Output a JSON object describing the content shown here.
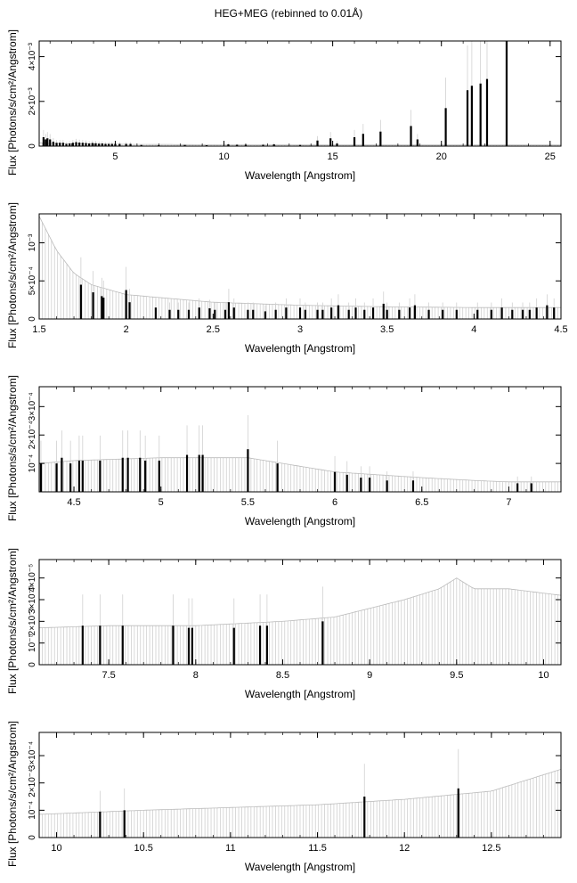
{
  "title": "HEG+MEG (rebinned to 0.01Å)",
  "chart_data": [
    {
      "type": "line",
      "xlabel": "Wavelength [Angstrom]",
      "ylabel": "Flux [Photons/s/cm²/Angstrom]",
      "xlim": [
        1.5,
        25.5
      ],
      "ylim": [
        0,
        0.0047
      ],
      "xticks": [
        5,
        10,
        15,
        20,
        25
      ],
      "xtick_labels": [
        "5",
        "10",
        "15",
        "20",
        "25"
      ],
      "yticks": [
        0,
        0.002,
        0.004
      ],
      "ytick_labels": [
        "0",
        "2×10⁻³",
        "4×10⁻³"
      ],
      "lines": {
        "x": [
          1.7,
          1.8,
          1.88,
          2.0,
          2.15,
          2.3,
          2.45,
          2.6,
          2.75,
          2.9,
          3.05,
          3.2,
          3.35,
          3.5,
          3.65,
          3.8,
          3.95,
          4.1,
          4.25,
          4.4,
          4.55,
          4.7,
          4.85,
          5.0,
          5.2,
          5.5,
          5.7,
          6.2,
          7.0,
          8.2,
          9.2,
          10.2,
          10.6,
          11.0,
          11.8,
          12.3,
          13.5,
          14.3,
          14.9,
          15.2,
          16.0,
          16.4,
          17.2,
          18.6,
          18.9,
          20.2,
          21.2,
          21.4,
          21.8,
          22.1,
          23.0
        ],
        "y": [
          0.0004,
          0.0003,
          0.00035,
          0.0003,
          0.0002,
          0.00015,
          0.00015,
          0.00015,
          0.0001,
          0.00012,
          0.00015,
          0.00018,
          0.00016,
          0.00015,
          0.00014,
          0.00012,
          0.00014,
          0.00013,
          0.00011,
          0.00012,
          0.0001,
          0.0001,
          0.0001,
          0.0001,
          0.0001,
          0.0001,
          0.0001,
          5e-05,
          4e-05,
          5e-05,
          4e-05,
          8e-05,
          6e-05,
          6e-05,
          6e-05,
          8e-05,
          5e-05,
          0.00025,
          0.00035,
          0.00012,
          0.0004,
          0.00055,
          0.00065,
          0.0009,
          0.0003,
          0.0017,
          0.0025,
          0.0027,
          0.0028,
          0.003,
          0.0047
        ]
      },
      "band": {
        "x": [
          1.5,
          2.0,
          3.0,
          5.0,
          10.0,
          15.0,
          20.0,
          25.5
        ],
        "y": [
          0.00015,
          0.00012,
          0.0001,
          8e-05,
          6e-05,
          5e-05,
          5e-05,
          5e-05
        ]
      }
    },
    {
      "type": "line",
      "xlabel": "Wavelength [Angstrom]",
      "ylabel": "Flux [Photons/s/cm²/Angstrom]",
      "xlim": [
        1.5,
        4.5
      ],
      "ylim": [
        0,
        0.00138
      ],
      "xticks": [
        1.5,
        2,
        2.5,
        3,
        3.5,
        4,
        4.5
      ],
      "xtick_labels": [
        "1.5",
        "2",
        "2.5",
        "3",
        "3.5",
        "4",
        "4.5"
      ],
      "yticks": [
        0,
        0.0005,
        0.001
      ],
      "ytick_labels": [
        "0",
        "5×10⁻⁴",
        "10⁻³"
      ],
      "lines": {
        "x": [
          1.74,
          1.81,
          1.86,
          1.87,
          2.0,
          2.02,
          2.17,
          2.25,
          2.3,
          2.36,
          2.42,
          2.48,
          2.51,
          2.57,
          2.59,
          2.62,
          2.7,
          2.73,
          2.8,
          2.86,
          2.92,
          3.0,
          3.03,
          3.1,
          3.13,
          3.18,
          3.22,
          3.28,
          3.32,
          3.37,
          3.42,
          3.48,
          3.5,
          3.57,
          3.63,
          3.66,
          3.74,
          3.82,
          3.9,
          4.02,
          4.1,
          4.16,
          4.22,
          4.28,
          4.32,
          4.36,
          4.42,
          4.46
        ],
        "y": [
          0.00045,
          0.00035,
          0.0003,
          0.00028,
          0.00038,
          0.00022,
          0.00015,
          0.00012,
          0.00012,
          0.00012,
          0.00015,
          0.00014,
          0.00012,
          0.00012,
          0.00022,
          0.00015,
          0.00012,
          0.00012,
          0.0001,
          0.00012,
          0.00015,
          0.00015,
          0.00012,
          0.00012,
          0.00012,
          0.00015,
          0.00018,
          0.00012,
          0.00015,
          0.00012,
          0.00015,
          0.0002,
          0.00012,
          0.00012,
          0.00015,
          0.00018,
          0.00012,
          0.00012,
          0.00012,
          0.00012,
          0.00012,
          0.00015,
          0.00012,
          0.00012,
          0.00012,
          0.00015,
          0.00018,
          0.00015
        ]
      },
      "band": {
        "x": [
          1.5,
          1.6,
          1.7,
          1.8,
          2.0,
          2.5,
          3.0,
          3.5,
          4.0,
          4.5
        ],
        "y": [
          0.00135,
          0.0009,
          0.0006,
          0.00045,
          0.00032,
          0.00022,
          0.00018,
          0.00016,
          0.00015,
          0.00015
        ]
      }
    },
    {
      "type": "line",
      "xlabel": "Wavelength [Angstrom]",
      "ylabel": "Flux [Photons/s/cm²/Angstrom]",
      "xlim": [
        4.3,
        7.3
      ],
      "ylim": [
        0,
        0.00037
      ],
      "xticks": [
        4.5,
        5,
        5.5,
        6,
        6.5,
        7
      ],
      "xtick_labels": [
        "4.5",
        "5",
        "5.5",
        "6",
        "6.5",
        "7"
      ],
      "yticks": [
        0.0001,
        0.0002,
        0.0003
      ],
      "ytick_labels": [
        "10⁻⁴",
        "2×10⁻⁴",
        "3×10⁻⁴"
      ],
      "lines": {
        "x": [
          4.31,
          4.4,
          4.43,
          4.48,
          4.53,
          4.55,
          4.65,
          4.78,
          4.81,
          4.88,
          4.91,
          4.99,
          5.15,
          5.22,
          5.24,
          5.5,
          5.67,
          6.0,
          6.07,
          6.15,
          6.2,
          6.3,
          6.45,
          7.05,
          7.13
        ],
        "y": [
          0.0001,
          0.0001,
          0.00012,
          0.0001,
          0.00011,
          0.00011,
          0.00011,
          0.00012,
          0.00012,
          0.00012,
          0.00011,
          0.00011,
          0.00013,
          0.00013,
          0.00013,
          0.00015,
          0.0001,
          7e-05,
          6e-05,
          5e-05,
          5e-05,
          4e-05,
          4e-05,
          3e-05,
          3e-05
        ]
      },
      "band": {
        "x": [
          4.3,
          4.5,
          5.0,
          5.5,
          5.8,
          6.0,
          6.5,
          6.8,
          7.0,
          7.3
        ],
        "y": [
          0.0001,
          0.00011,
          0.00012,
          0.00012,
          9e-05,
          7e-05,
          5e-05,
          4e-05,
          3.5e-05,
          3.5e-05
        ]
      }
    },
    {
      "type": "line",
      "xlabel": "Wavelength [Angstrom]",
      "ylabel": "Flux [Photons/s/cm²/Angstrom]",
      "xlim": [
        7.1,
        10.1
      ],
      "ylim": [
        0,
        4.85e-05
      ],
      "xticks": [
        7.5,
        8,
        8.5,
        9,
        9.5,
        10
      ],
      "xtick_labels": [
        "7.5",
        "8",
        "8.5",
        "9",
        "9.5",
        "10"
      ],
      "yticks": [
        0,
        1e-05,
        2e-05,
        3e-05,
        4e-05
      ],
      "ytick_labels": [
        "0",
        "10⁻⁵",
        "2×10⁻⁵",
        "3×10⁻⁵",
        "4×10⁻⁵"
      ],
      "lines": {
        "x": [
          7.35,
          7.45,
          7.58,
          7.87,
          7.96,
          7.98,
          8.22,
          8.37,
          8.41,
          8.73
        ],
        "y": [
          1.8e-05,
          1.8e-05,
          1.8e-05,
          1.8e-05,
          1.7e-05,
          1.7e-05,
          1.7e-05,
          1.8e-05,
          1.8e-05,
          2e-05
        ]
      },
      "band": {
        "x": [
          7.1,
          7.5,
          8.0,
          8.5,
          8.8,
          9.0,
          9.2,
          9.4,
          9.5,
          9.6,
          9.8,
          10.1
        ],
        "y": [
          1.7e-05,
          1.8e-05,
          1.8e-05,
          2e-05,
          2.2e-05,
          2.6e-05,
          3e-05,
          3.5e-05,
          4e-05,
          3.5e-05,
          3.5e-05,
          3.2e-05
        ]
      }
    },
    {
      "type": "line",
      "xlabel": "Wavelength [Angstrom]",
      "ylabel": "Flux [Photons/s/cm²/Angstrom]",
      "xlim": [
        9.9,
        12.9
      ],
      "ylim": [
        0,
        0.000385
      ],
      "xticks": [
        10,
        10.5,
        11,
        11.5,
        12,
        12.5
      ],
      "xtick_labels": [
        "10",
        "10.5",
        "11",
        "11.5",
        "12",
        "12.5"
      ],
      "yticks": [
        0,
        0.0001,
        0.0002,
        0.0003
      ],
      "ytick_labels": [
        "0",
        "10⁻⁴",
        "2×10⁻⁴",
        "3×10⁻⁴"
      ],
      "lines": {
        "x": [
          10.25,
          10.39,
          11.77,
          12.31
        ],
        "y": [
          9.5e-05,
          0.0001,
          0.00015,
          0.00018
        ]
      },
      "band": {
        "x": [
          9.9,
          10.5,
          11.0,
          11.5,
          12.0,
          12.5,
          12.9
        ],
        "y": [
          8.5e-05,
          0.0001,
          0.00011,
          0.00012,
          0.00014,
          0.00017,
          0.00025
        ]
      }
    }
  ]
}
